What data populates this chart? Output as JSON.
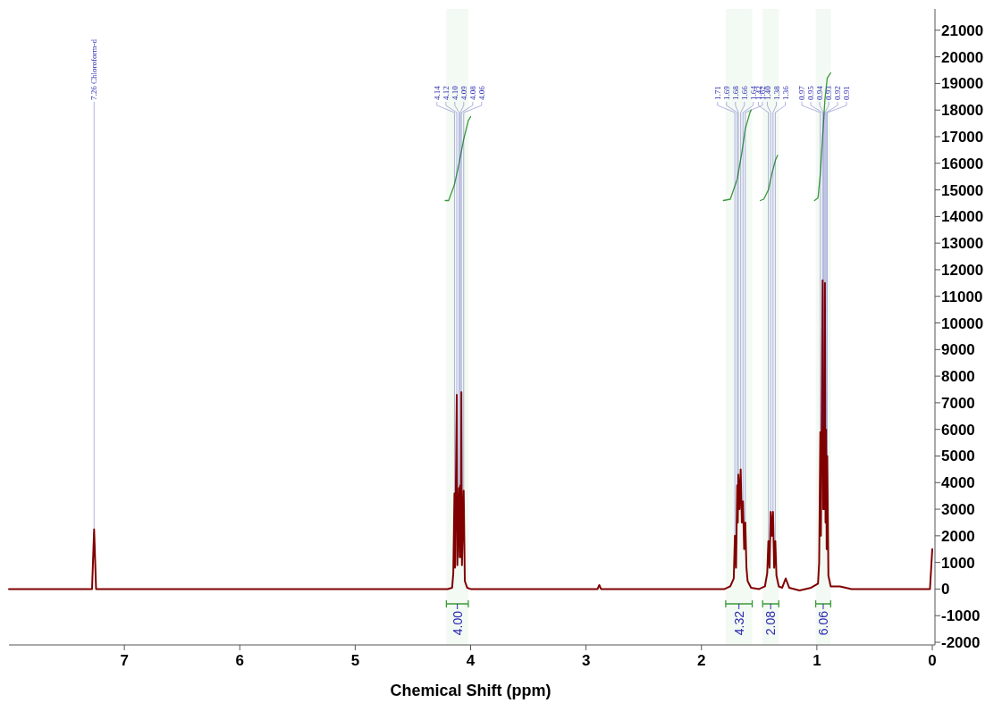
{
  "chart_data": {
    "type": "line",
    "xlabel": "Chemical Shift (ppm)",
    "xlim": [
      8,
      0
    ],
    "xticks": [
      7,
      6,
      5,
      4,
      3,
      2,
      1,
      0
    ],
    "ylim": [
      -2100,
      21800
    ],
    "yticks": [
      -2000,
      -1000,
      0,
      1000,
      2000,
      3000,
      4000,
      5000,
      6000,
      7000,
      8000,
      9000,
      10000,
      11000,
      12000,
      13000,
      14000,
      15000,
      16000,
      17000,
      18000,
      19000,
      20000,
      21000
    ],
    "grid": false,
    "series": [
      {
        "color": "#800000",
        "x": [
          8,
          7.3,
          7.28,
          7.262,
          7.245,
          4.2,
          4.16,
          4.15,
          4.14,
          4.135,
          4.12,
          4.115,
          4.1,
          4.095,
          4.09,
          4.085,
          4.08,
          4.075,
          4.06,
          4.05,
          4.03,
          4,
          3.9,
          2.9,
          2.885,
          2.87,
          1.8,
          1.75,
          1.72,
          1.71,
          1.7,
          1.69,
          1.685,
          1.68,
          1.67,
          1.66,
          1.65,
          1.64,
          1.63,
          1.62,
          1.61,
          1.6,
          1.57,
          1.5,
          1.45,
          1.43,
          1.42,
          1.41,
          1.4,
          1.39,
          1.38,
          1.37,
          1.36,
          1.35,
          1.33,
          1.3,
          1.27,
          1.24,
          1.15,
          1.05,
          0.99,
          0.98,
          0.97,
          0.965,
          0.95,
          0.945,
          0.94,
          0.935,
          0.93,
          0.925,
          0.92,
          0.915,
          0.91,
          0.9,
          0.88,
          0.8,
          0.7,
          0.05,
          0.02,
          0
        ],
        "values": [
          0,
          0,
          0,
          2250,
          0,
          0,
          50,
          600,
          3600,
          800,
          7300,
          900,
          3800,
          1200,
          3900,
          1200,
          7400,
          900,
          3700,
          300,
          50,
          0,
          0,
          0,
          150,
          0,
          0,
          100,
          400,
          2000,
          800,
          3900,
          2500,
          4300,
          3000,
          4500,
          2500,
          3300,
          1500,
          2500,
          800,
          300,
          50,
          0,
          100,
          600,
          1800,
          800,
          2900,
          2000,
          2900,
          800,
          1800,
          500,
          100,
          50,
          400,
          50,
          -50,
          50,
          200,
          1000,
          5900,
          2000,
          11600,
          3000,
          6100,
          3000,
          11500,
          2500,
          6000,
          1500,
          5000,
          500,
          100,
          100,
          0,
          0,
          0,
          1500
        ]
      },
      {
        "color": "#3a9a3a",
        "x": [
          4.22,
          4.19,
          4.14,
          4.1,
          4.06,
          4.02,
          4
        ],
        "values": [
          14600,
          14600,
          15200,
          16000,
          16900,
          17600,
          17750
        ]
      },
      {
        "color": "#3a9a3a",
        "x": [
          1.81,
          1.75,
          1.69,
          1.65,
          1.62,
          1.58,
          1.57
        ],
        "values": [
          14600,
          14650,
          15400,
          16400,
          17300,
          17900,
          18000
        ]
      },
      {
        "color": "#3a9a3a",
        "x": [
          1.49,
          1.46,
          1.42,
          1.39,
          1.36,
          1.34
        ],
        "values": [
          14600,
          14650,
          15000,
          15600,
          16100,
          16300
        ]
      },
      {
        "color": "#3a9a3a",
        "x": [
          1.02,
          0.99,
          0.97,
          0.95,
          0.93,
          0.91,
          0.88
        ],
        "values": [
          14600,
          14700,
          15600,
          17000,
          18400,
          19200,
          19400
        ]
      }
    ],
    "annotations": [
      {
        "text": "7.26 Chloroform-d",
        "x": 7.262,
        "y": 2250
      },
      {
        "text": "4.14",
        "x": 4.14,
        "y": 3600
      },
      {
        "text": "4.12",
        "x": 4.12,
        "y": 7300
      },
      {
        "text": "4.10",
        "x": 4.1,
        "y": 3800
      },
      {
        "text": "4.09",
        "x": 4.09,
        "y": 3900
      },
      {
        "text": "4.08",
        "x": 4.08,
        "y": 7400
      },
      {
        "text": "4.06",
        "x": 4.06,
        "y": 3700
      },
      {
        "text": "1.71",
        "x": 1.71,
        "y": 2000
      },
      {
        "text": "1.69",
        "x": 1.69,
        "y": 3900
      },
      {
        "text": "1.68",
        "x": 1.68,
        "y": 4300
      },
      {
        "text": "1.66",
        "x": 1.66,
        "y": 4500
      },
      {
        "text": "1.64",
        "x": 1.64,
        "y": 3300
      },
      {
        "text": "1.62",
        "x": 1.62,
        "y": 2500
      },
      {
        "text": "1.42",
        "x": 1.42,
        "y": 1800
      },
      {
        "text": "1.40",
        "x": 1.4,
        "y": 2900
      },
      {
        "text": "1.38",
        "x": 1.38,
        "y": 2900
      },
      {
        "text": "1.36",
        "x": 1.36,
        "y": 1800
      },
      {
        "text": "0.97",
        "x": 0.97,
        "y": 5900
      },
      {
        "text": "0.95",
        "x": 0.95,
        "y": 11600
      },
      {
        "text": "0.94",
        "x": 0.94,
        "y": 6100
      },
      {
        "text": "0.93",
        "x": 0.93,
        "y": 11500
      },
      {
        "text": "0.92",
        "x": 0.92,
        "y": 6000
      },
      {
        "text": "0.91",
        "x": 0.91,
        "y": 5000
      }
    ],
    "bands": [
      {
        "axis": "x",
        "from": 4.21,
        "to": 4.02,
        "label": "4.00",
        "color": "#3a9a3a"
      },
      {
        "axis": "x",
        "from": 1.79,
        "to": 1.56,
        "label": "4.32",
        "color": "#3a9a3a"
      },
      {
        "axis": "x",
        "from": 1.47,
        "to": 1.33,
        "label": "2.08",
        "color": "#3a9a3a"
      },
      {
        "axis": "x",
        "from": 1.01,
        "to": 0.88,
        "label": "6.06",
        "color": "#3a9a3a"
      }
    ]
  }
}
